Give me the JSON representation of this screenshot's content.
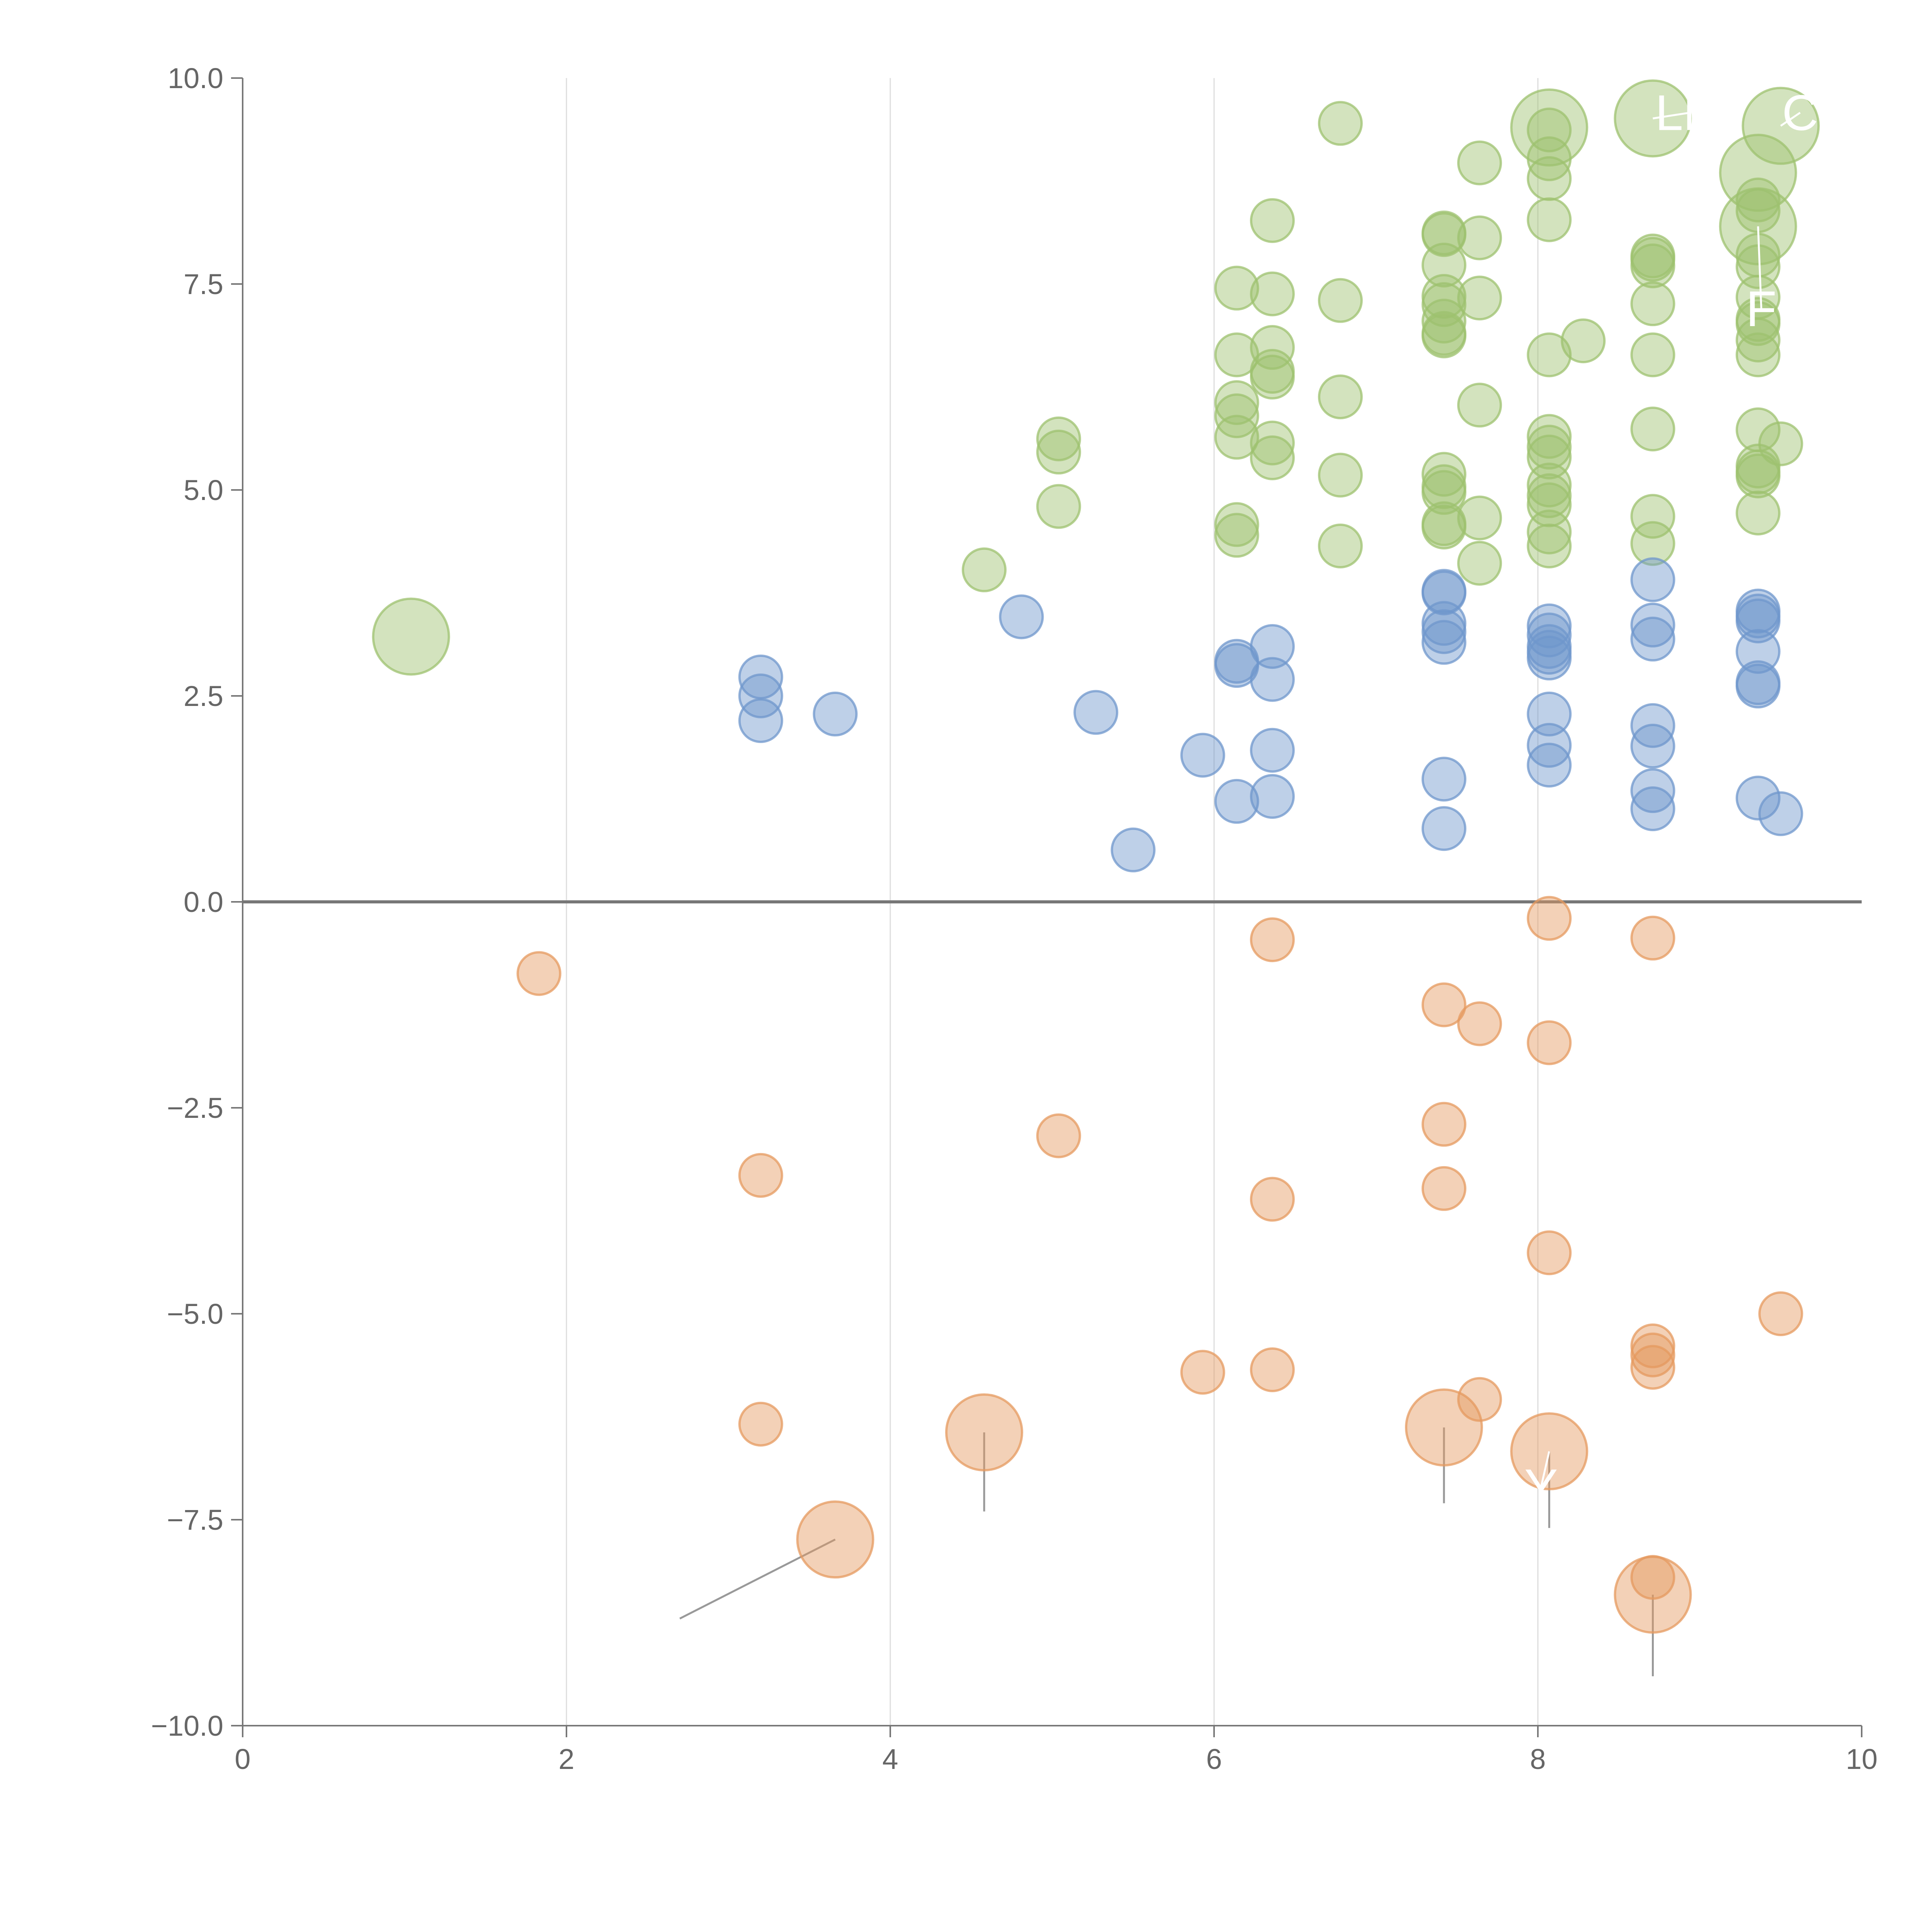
{
  "chart_data": {
    "type": "scatter",
    "title": "",
    "xlabel": "",
    "ylabel": "",
    "xlim": [
      0,
      10
    ],
    "ylim": [
      -10,
      10
    ],
    "grid": "vertical",
    "x_ticks": [
      0,
      2,
      4,
      6,
      8,
      10
    ],
    "x_tick_labels": [
      "0",
      "2",
      "4",
      "6",
      "8",
      "10"
    ],
    "y_ticks": [
      10,
      7.5,
      5,
      2.5,
      0,
      -2.5,
      -5,
      -7.5,
      -10
    ],
    "y_tick_labels": [
      "10.0",
      "7.5",
      "5.0",
      "2.5",
      "0.0",
      "−2.5",
      "−5.0",
      "−7.5",
      "−10.0"
    ],
    "series": [
      {
        "name": "green",
        "color": "#9dc26f",
        "points": [
          [
            1.04,
            3.22,
            3
          ],
          [
            4.58,
            4.03,
            1
          ],
          [
            5.04,
            5.62,
            1
          ],
          [
            5.04,
            5.46,
            1
          ],
          [
            5.04,
            4.8,
            1
          ],
          [
            6.14,
            7.45,
            1
          ],
          [
            6.14,
            6.64,
            1
          ],
          [
            6.14,
            6.06,
            1
          ],
          [
            6.14,
            5.9,
            1
          ],
          [
            6.14,
            5.64,
            1
          ],
          [
            6.14,
            4.58,
            1
          ],
          [
            6.14,
            4.45,
            1
          ],
          [
            6.36,
            8.27,
            1
          ],
          [
            6.36,
            7.38,
            1
          ],
          [
            6.36,
            6.73,
            1
          ],
          [
            6.36,
            6.44,
            1
          ],
          [
            6.36,
            6.37,
            1
          ],
          [
            6.36,
            5.57,
            1
          ],
          [
            6.36,
            5.39,
            1
          ],
          [
            6.78,
            9.45,
            1
          ],
          [
            6.78,
            7.3,
            1
          ],
          [
            6.78,
            6.13,
            1
          ],
          [
            6.78,
            5.18,
            1
          ],
          [
            6.78,
            4.32,
            1
          ],
          [
            7.42,
            8.12,
            1
          ],
          [
            7.42,
            8.1,
            1
          ],
          [
            7.42,
            7.73,
            1
          ],
          [
            7.42,
            7.35,
            1
          ],
          [
            7.42,
            7.25,
            1
          ],
          [
            7.42,
            7.05,
            1
          ],
          [
            7.42,
            6.9,
            1
          ],
          [
            7.42,
            6.87,
            1
          ],
          [
            7.42,
            5.19,
            1
          ],
          [
            7.42,
            5.04,
            1
          ],
          [
            7.42,
            4.97,
            1
          ],
          [
            7.42,
            4.59,
            1
          ],
          [
            7.42,
            4.55,
            1
          ],
          [
            7.64,
            8.97,
            1
          ],
          [
            7.64,
            8.06,
            1
          ],
          [
            7.64,
            7.33,
            1
          ],
          [
            7.64,
            6.03,
            1
          ],
          [
            7.64,
            4.66,
            1
          ],
          [
            7.64,
            4.11,
            1
          ],
          [
            8.07,
            9.4,
            3
          ],
          [
            8.07,
            9.37,
            1
          ],
          [
            8.07,
            9.02,
            1
          ],
          [
            8.07,
            8.78,
            1
          ],
          [
            8.07,
            8.28,
            1
          ],
          [
            8.07,
            6.64,
            1
          ],
          [
            8.07,
            5.65,
            1
          ],
          [
            8.07,
            5.52,
            1
          ],
          [
            8.07,
            5.4,
            1
          ],
          [
            8.07,
            5.06,
            1
          ],
          [
            8.07,
            4.93,
            1
          ],
          [
            8.07,
            4.82,
            1
          ],
          [
            8.07,
            4.49,
            1
          ],
          [
            8.07,
            4.32,
            1
          ],
          [
            8.28,
            6.81,
            1
          ],
          [
            8.71,
            9.51,
            3
          ],
          [
            8.71,
            7.84,
            1
          ],
          [
            8.71,
            7.8,
            1
          ],
          [
            8.71,
            7.72,
            1
          ],
          [
            8.71,
            7.26,
            1
          ],
          [
            8.71,
            6.64,
            1
          ],
          [
            8.71,
            5.74,
            1
          ],
          [
            8.71,
            4.68,
            1
          ],
          [
            8.71,
            4.35,
            1
          ],
          [
            9.36,
            8.85,
            3
          ],
          [
            9.36,
            8.52,
            1
          ],
          [
            9.36,
            8.39,
            1
          ],
          [
            9.36,
            8.2,
            3
          ],
          [
            9.36,
            7.85,
            1
          ],
          [
            9.36,
            7.71,
            1
          ],
          [
            9.36,
            7.34,
            1
          ],
          [
            9.36,
            7.07,
            1
          ],
          [
            9.36,
            7.02,
            1
          ],
          [
            9.36,
            6.82,
            1
          ],
          [
            9.36,
            6.64,
            1
          ],
          [
            9.36,
            5.73,
            1
          ],
          [
            9.36,
            5.29,
            1
          ],
          [
            9.36,
            5.22,
            1
          ],
          [
            9.36,
            5.17,
            1
          ],
          [
            9.36,
            4.72,
            1
          ],
          [
            9.5,
            9.42,
            3
          ],
          [
            9.5,
            5.56,
            1
          ]
        ]
      },
      {
        "name": "blue",
        "color": "#6f97cc",
        "points": [
          [
            3.2,
            2.73,
            1
          ],
          [
            3.2,
            2.5,
            1
          ],
          [
            3.2,
            2.2,
            1
          ],
          [
            3.66,
            2.28,
            1
          ],
          [
            4.81,
            3.46,
            1
          ],
          [
            5.27,
            2.3,
            1
          ],
          [
            5.5,
            0.63,
            1
          ],
          [
            5.93,
            1.78,
            1
          ],
          [
            6.14,
            2.92,
            1
          ],
          [
            6.14,
            2.87,
            1
          ],
          [
            6.14,
            1.22,
            1
          ],
          [
            6.36,
            3.1,
            1
          ],
          [
            6.36,
            2.7,
            1
          ],
          [
            6.36,
            1.84,
            1
          ],
          [
            6.36,
            1.28,
            1
          ],
          [
            7.42,
            3.77,
            1
          ],
          [
            7.42,
            3.75,
            1
          ],
          [
            7.42,
            3.38,
            1
          ],
          [
            7.42,
            3.28,
            1
          ],
          [
            7.42,
            3.15,
            1
          ],
          [
            7.42,
            1.49,
            1
          ],
          [
            7.42,
            0.89,
            1
          ],
          [
            8.07,
            3.35,
            1
          ],
          [
            8.07,
            3.24,
            1
          ],
          [
            8.07,
            3.1,
            1
          ],
          [
            8.07,
            3.03,
            1
          ],
          [
            8.07,
            2.96,
            1
          ],
          [
            8.07,
            2.28,
            1
          ],
          [
            8.07,
            1.9,
            1
          ],
          [
            8.07,
            1.66,
            1
          ],
          [
            8.71,
            3.91,
            1
          ],
          [
            8.71,
            3.36,
            1
          ],
          [
            8.71,
            3.19,
            1
          ],
          [
            8.71,
            2.14,
            1
          ],
          [
            8.71,
            1.89,
            1
          ],
          [
            8.71,
            1.35,
            1
          ],
          [
            8.71,
            1.13,
            1
          ],
          [
            9.36,
            3.53,
            1
          ],
          [
            9.36,
            3.47,
            1
          ],
          [
            9.36,
            3.41,
            1
          ],
          [
            9.36,
            3.04,
            1
          ],
          [
            9.36,
            2.66,
            1
          ],
          [
            9.36,
            2.62,
            1
          ],
          [
            9.36,
            1.26,
            1
          ],
          [
            9.5,
            1.07,
            1
          ]
        ]
      },
      {
        "name": "orange",
        "color": "#e59a5f",
        "points": [
          [
            1.83,
            -0.87,
            1
          ],
          [
            3.2,
            -3.32,
            1
          ],
          [
            3.2,
            -6.34,
            1
          ],
          [
            3.66,
            -7.74,
            3
          ],
          [
            4.58,
            -6.44,
            3
          ],
          [
            5.04,
            -2.84,
            1
          ],
          [
            5.93,
            -5.71,
            1
          ],
          [
            6.36,
            -0.46,
            1
          ],
          [
            6.36,
            -3.61,
            1
          ],
          [
            6.36,
            -5.68,
            1
          ],
          [
            7.42,
            -1.25,
            1
          ],
          [
            7.42,
            -2.7,
            1
          ],
          [
            7.42,
            -3.48,
            1
          ],
          [
            7.42,
            -6.38,
            3
          ],
          [
            7.64,
            -1.48,
            1
          ],
          [
            7.64,
            -6.04,
            1
          ],
          [
            8.07,
            -0.2,
            1
          ],
          [
            8.07,
            -1.71,
            1
          ],
          [
            8.07,
            -4.26,
            1
          ],
          [
            8.07,
            -6.67,
            3
          ],
          [
            8.71,
            -0.44,
            1
          ],
          [
            8.71,
            -5.39,
            1
          ],
          [
            8.71,
            -5.5,
            1
          ],
          [
            8.71,
            -5.65,
            1
          ],
          [
            8.71,
            -8.2,
            1
          ],
          [
            8.71,
            -8.41,
            3
          ],
          [
            9.5,
            -5.0,
            1
          ]
        ]
      }
    ],
    "annotations": [
      {
        "text": "LM",
        "point": [
          8.71,
          9.51
        ],
        "text_at": [
          8.94,
          9.58
        ]
      },
      {
        "text": "C",
        "point": [
          9.5,
          9.42
        ],
        "text_at": [
          9.62,
          9.58
        ]
      },
      {
        "text": "F",
        "point": [
          9.36,
          8.2
        ],
        "text_at": [
          9.38,
          7.2
        ]
      },
      {
        "text": "Y",
        "point": [
          8.07,
          -6.67
        ],
        "text_at": [
          8.02,
          -7.1
        ]
      }
    ],
    "leader_lines": [
      {
        "from": [
          3.66,
          -7.74
        ],
        "to": [
          2.7,
          -8.7
        ]
      },
      {
        "from": [
          4.58,
          -6.44
        ],
        "to": [
          4.58,
          -7.4
        ]
      },
      {
        "from": [
          7.42,
          -6.38
        ],
        "to": [
          7.42,
          -7.3
        ]
      },
      {
        "from": [
          8.07,
          -6.67
        ],
        "to": [
          8.07,
          -7.6
        ]
      },
      {
        "from": [
          8.71,
          -8.41
        ],
        "to": [
          8.71,
          -9.4
        ]
      }
    ]
  }
}
